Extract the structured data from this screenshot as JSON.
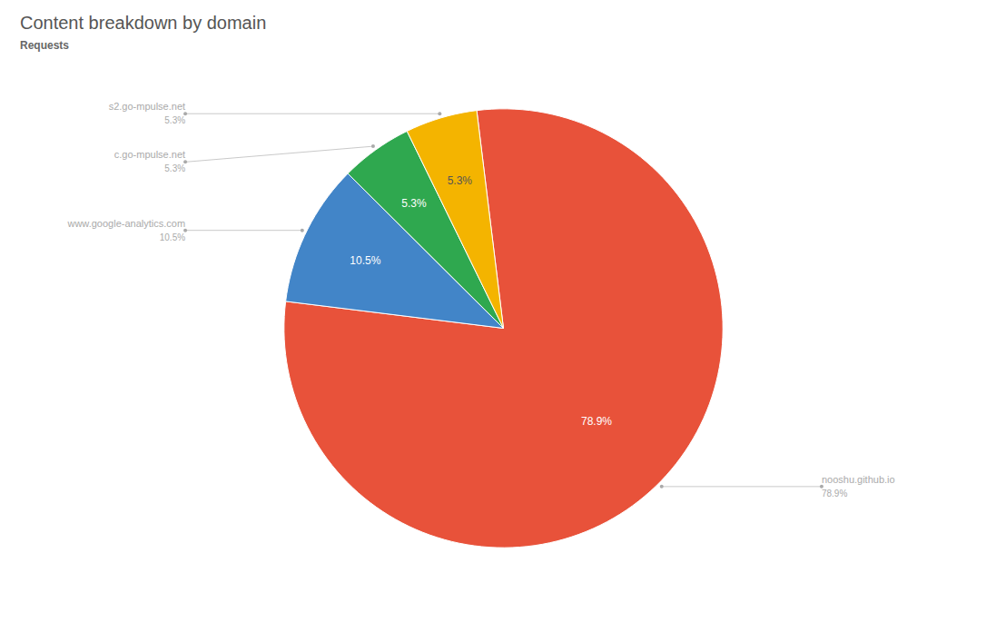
{
  "chart_data": {
    "type": "pie",
    "title": "Content breakdown by domain",
    "subtitle": "Requests",
    "categories": [
      "nooshu.github.io",
      "www.google-analytics.com",
      "c.go-mpulse.net",
      "s2.go-mpulse.net"
    ],
    "values": [
      78.9,
      10.5,
      5.3,
      5.3
    ],
    "value_labels": [
      "78.9%",
      "10.5%",
      "5.3%",
      "5.3%"
    ],
    "colors": [
      "#E8523A",
      "#4285C8",
      "#2FA84F",
      "#F4B400"
    ],
    "data_labels": true
  }
}
